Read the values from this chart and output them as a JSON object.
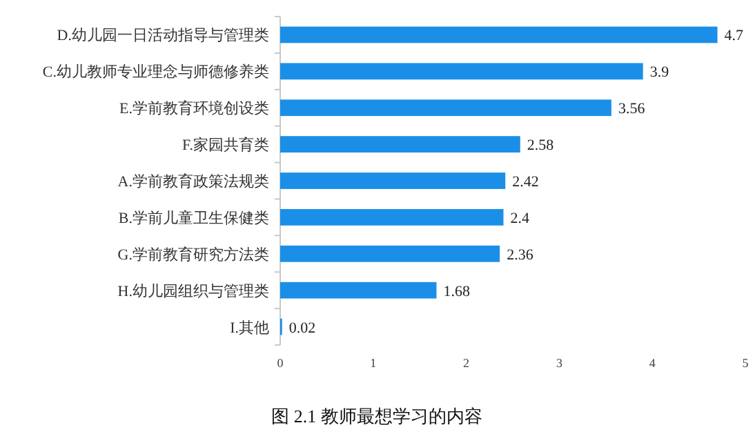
{
  "chart_data": {
    "type": "bar",
    "orientation": "horizontal",
    "categories": [
      "D.幼儿园一日活动指导与管理类",
      "C.幼儿教师专业理念与师德修养类",
      "E.学前教育环境创设类",
      "F.家园共育类",
      "A.学前教育政策法规类",
      "B.学前儿童卫生保健类",
      "G.学前教育研究方法类",
      "H.幼儿园组织与管理类",
      "I.其他"
    ],
    "values": [
      4.7,
      3.9,
      3.56,
      2.58,
      2.42,
      2.4,
      2.36,
      1.68,
      0.02
    ],
    "color": "#1b8fe8",
    "xlim": [
      0,
      5
    ],
    "xticks": [
      0,
      1,
      2,
      3,
      4,
      5
    ],
    "data_labels": true,
    "grid": false,
    "annotations": [
      "图 2.1 教师最想学习的内容"
    ]
  }
}
